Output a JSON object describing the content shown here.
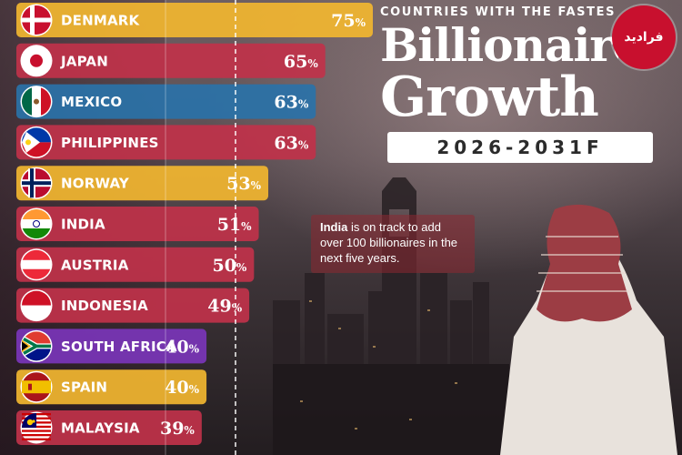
{
  "header": {
    "kicker": "COUNTRIES WITH THE FASTES",
    "title_line1": "Billionaire",
    "title_line2": "Growth",
    "period": "2026-2031F"
  },
  "note": {
    "highlight": "India",
    "text": " is on track to add over 100 billionaires in the next five years."
  },
  "logo": {
    "text": "فرادید"
  },
  "colors": {
    "yellow": "#f2b630",
    "red": "#c0324a",
    "blue": "#2a72a8",
    "purple": "#7a35b8"
  },
  "chart_data": {
    "type": "bar",
    "orientation": "horizontal",
    "categories": [
      "DENMARK",
      "JAPAN",
      "MEXICO",
      "PHILIPPINES",
      "NORWAY",
      "INDIA",
      "AUSTRIA",
      "INDONESIA",
      "SOUTH AFRICA",
      "SPAIN",
      "MALAYSIA"
    ],
    "values": [
      75,
      65,
      63,
      63,
      53,
      51,
      50,
      49,
      40,
      40,
      39
    ],
    "value_suffix": "%",
    "bar_colors": [
      "#f2b630",
      "#c0324a",
      "#2a72a8",
      "#c0324a",
      "#f2b630",
      "#c0324a",
      "#c0324a",
      "#c0324a",
      "#7a35b8",
      "#f2b630",
      "#c0324a"
    ],
    "flag_icons": [
      "denmark-flag-icon",
      "japan-flag-icon",
      "mexico-flag-icon",
      "philippines-flag-icon",
      "norway-flag-icon",
      "india-flag-icon",
      "austria-flag-icon",
      "indonesia-flag-icon",
      "south-africa-flag-icon",
      "spain-flag-icon",
      "malaysia-flag-icon"
    ],
    "reference_line": true
  }
}
